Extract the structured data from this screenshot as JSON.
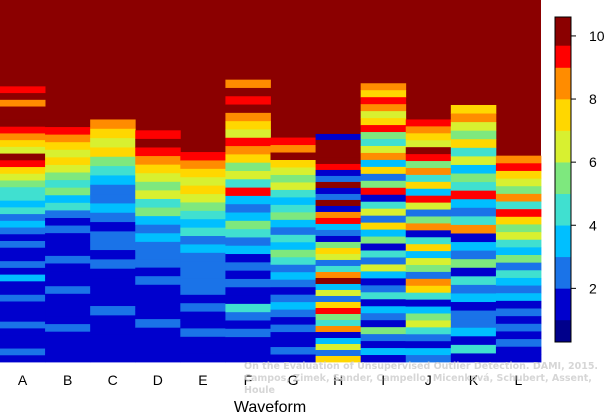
{
  "chart_data": {
    "type": "heatmap",
    "xlabel": "Waveform",
    "ylabel": "",
    "categories": [
      "A",
      "B",
      "C",
      "D",
      "E",
      "F",
      "G",
      "H",
      "I",
      "J",
      "K",
      "L"
    ],
    "colorbar": {
      "ticks": [
        2,
        4,
        6,
        8,
        10
      ],
      "range": [
        0.3,
        10.6
      ],
      "levels": [
        {
          "from": 0.3,
          "to": 1.0,
          "color": "#00008b"
        },
        {
          "from": 1.0,
          "to": 2.0,
          "color": "#0000cd"
        },
        {
          "from": 2.0,
          "to": 3.0,
          "color": "#1a73e8"
        },
        {
          "from": 3.0,
          "to": 4.0,
          "color": "#00bfff"
        },
        {
          "from": 4.0,
          "to": 5.0,
          "color": "#40e0d0"
        },
        {
          "from": 5.0,
          "to": 6.0,
          "color": "#7ee87e"
        },
        {
          "from": 6.0,
          "to": 7.0,
          "color": "#d8f030"
        },
        {
          "from": 7.0,
          "to": 8.0,
          "color": "#ffd700"
        },
        {
          "from": 8.0,
          "to": 9.0,
          "color": "#ff8c00"
        },
        {
          "from": 9.0,
          "to": 9.7,
          "color": "#ff0000"
        },
        {
          "from": 9.7,
          "to": 10.6,
          "color": "#8b0000"
        }
      ]
    },
    "columns": [
      {
        "name": "A",
        "top_fraction": 0.78,
        "bands": [
          10,
          9,
          10,
          8,
          10,
          10,
          10,
          9,
          8,
          7,
          6,
          10,
          9,
          7,
          6,
          5,
          4,
          4,
          3,
          4,
          2,
          3,
          2,
          1,
          2,
          1,
          1,
          2,
          1,
          3,
          1,
          1,
          2,
          1,
          1,
          1,
          2,
          1,
          1,
          1,
          2,
          1
        ]
      },
      {
        "name": "B",
        "top_fraction": 0.67,
        "bands": [
          10,
          9,
          8,
          7,
          6,
          7,
          6,
          5,
          4,
          5,
          3,
          4,
          2,
          1,
          2,
          1,
          1,
          1,
          2,
          1,
          1,
          1,
          2,
          1,
          1,
          1,
          1,
          2,
          1,
          1,
          1,
          1
        ]
      },
      {
        "name": "C",
        "top_fraction": 0.67,
        "bands": [
          8,
          7,
          6,
          7,
          5,
          4,
          3,
          2,
          2,
          3,
          2,
          1,
          2,
          2,
          1,
          2,
          1,
          1,
          1,
          1,
          2,
          1,
          1,
          1,
          1,
          1
        ]
      },
      {
        "name": "D",
        "top_fraction": 0.64,
        "bands": [
          9,
          10,
          9,
          8,
          7,
          6,
          5,
          6,
          4,
          5,
          3,
          2,
          3,
          2,
          2,
          2,
          1,
          2,
          1,
          1,
          1,
          1,
          2,
          1,
          1,
          1,
          1
        ]
      },
      {
        "name": "E",
        "top_fraction": 0.58,
        "bands": [
          9,
          8,
          7,
          6,
          7,
          6,
          5,
          4,
          3,
          4,
          2,
          3,
          2,
          2,
          2,
          2,
          2,
          1,
          2,
          1,
          1,
          2,
          1,
          1,
          1
        ]
      },
      {
        "name": "F",
        "top_fraction": 0.78,
        "bands": [
          8,
          10,
          9,
          10,
          8,
          7,
          6,
          9,
          8,
          7,
          5,
          6,
          4,
          9,
          3,
          2,
          3,
          5,
          4,
          2,
          3,
          1,
          2,
          1,
          2,
          1,
          1,
          4,
          2,
          1,
          2,
          1,
          1,
          1
        ]
      },
      {
        "name": "G",
        "top_fraction": 0.62,
        "bands": [
          9,
          8,
          10,
          7,
          6,
          5,
          6,
          4,
          3,
          4,
          5,
          3,
          2,
          4,
          3,
          5,
          4,
          2,
          3,
          2,
          1,
          2,
          3,
          2,
          1,
          2,
          1,
          1,
          2,
          1
        ]
      },
      {
        "name": "H",
        "top_fraction": 0.63,
        "bands": [
          1,
          10,
          10,
          10,
          10,
          9,
          1,
          2,
          10,
          1,
          2,
          10,
          1,
          8,
          9,
          3,
          2,
          1,
          5,
          7,
          6,
          2,
          4,
          8,
          10,
          3,
          6,
          2,
          7,
          9,
          5,
          4,
          8,
          1,
          3,
          6,
          2,
          7
        ]
      },
      {
        "name": "I",
        "top_fraction": 0.77,
        "bands": [
          8,
          7,
          9,
          8,
          6,
          7,
          9,
          5,
          4,
          6,
          8,
          3,
          7,
          2,
          5,
          9,
          1,
          4,
          6,
          2,
          7,
          3,
          5,
          1,
          4,
          2,
          6,
          3,
          1,
          2,
          4,
          1,
          3,
          2,
          1,
          5,
          2,
          1,
          3,
          1
        ]
      },
      {
        "name": "J",
        "top_fraction": 0.67,
        "bands": [
          9,
          8,
          7,
          6,
          10,
          9,
          5,
          8,
          4,
          7,
          3,
          9,
          6,
          2,
          5,
          8,
          1,
          4,
          7,
          3,
          6,
          5,
          2,
          8,
          7,
          4,
          1,
          3,
          5,
          6,
          4,
          2,
          1,
          3,
          2
        ]
      },
      {
        "name": "K",
        "top_fraction": 0.71,
        "bands": [
          7,
          8,
          6,
          5,
          7,
          4,
          6,
          3,
          5,
          4,
          9,
          3,
          2,
          4,
          8,
          1,
          3,
          2,
          5,
          1,
          4,
          2,
          3,
          1,
          2,
          2,
          3,
          1,
          4,
          1
        ]
      },
      {
        "name": "L",
        "top_fraction": 0.57,
        "bands": [
          8,
          9,
          7,
          6,
          5,
          8,
          4,
          9,
          7,
          5,
          6,
          4,
          3,
          5,
          2,
          4,
          3,
          2,
          3,
          1,
          2,
          1,
          2,
          1,
          2,
          1,
          1
        ]
      }
    ]
  },
  "watermark": {
    "line1": "On the Evaluation of Unsupervised Outlier Detection. DAMI, 2015.",
    "line2": "Campos, Zimek, Sander, Campello, Micenková, Schubert, Assent, Houle"
  }
}
